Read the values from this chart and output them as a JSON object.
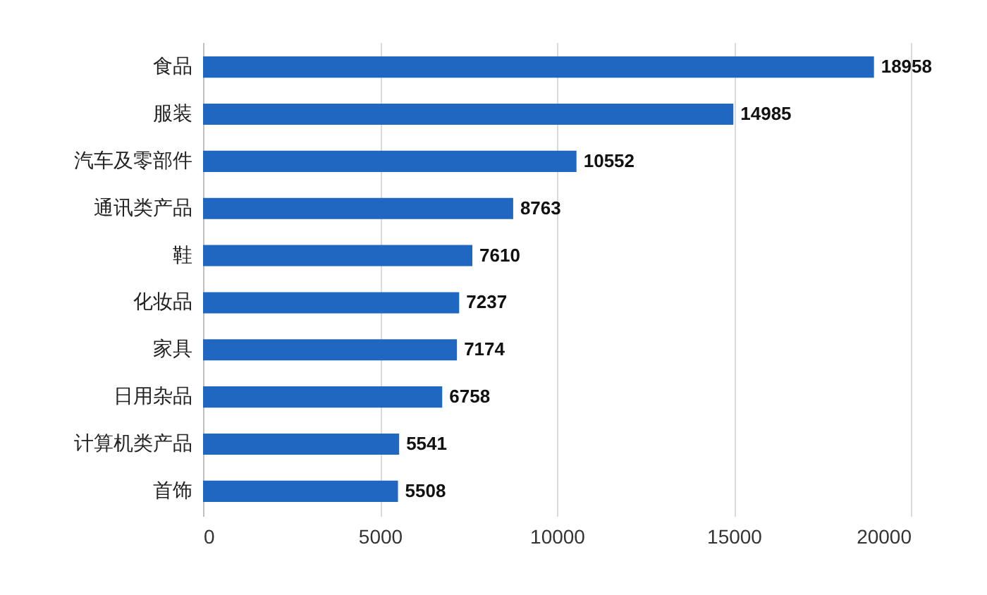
{
  "chart_data": {
    "type": "bar",
    "orientation": "horizontal",
    "categories": [
      "食品",
      "服装",
      "汽车及零部件",
      "通讯类产品",
      "鞋",
      "化妆品",
      "家具",
      "日用杂品",
      "计算机类产品",
      "首饰"
    ],
    "values": [
      18958,
      14985,
      10552,
      8763,
      7610,
      7237,
      7174,
      6758,
      5541,
      5508
    ],
    "color": "#1f67c0",
    "xlim": [
      0,
      20000
    ],
    "xticks": [
      0,
      5000,
      10000,
      15000,
      20000
    ],
    "grid": "x",
    "data_labels": true
  }
}
